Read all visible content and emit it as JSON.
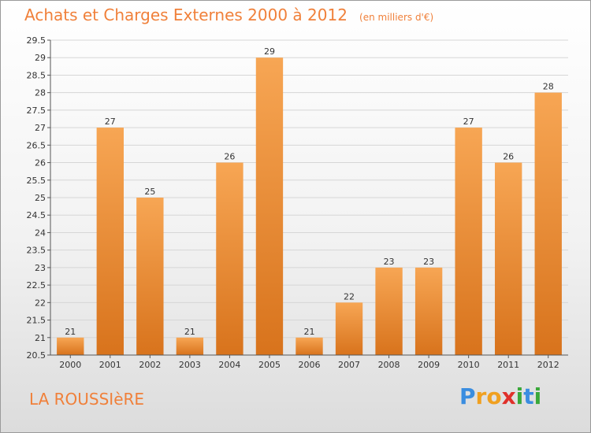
{
  "chart_data": {
    "type": "bar",
    "title": "Achats et Charges Externes 2000 à 2012",
    "subtitle": "(en milliers d'€)",
    "categories": [
      "2000",
      "2001",
      "2002",
      "2003",
      "2004",
      "2005",
      "2006",
      "2007",
      "2008",
      "2009",
      "2010",
      "2011",
      "2012"
    ],
    "values": [
      21,
      27,
      25,
      21,
      26,
      29,
      21,
      22,
      23,
      23,
      27,
      26,
      28
    ],
    "xlabel": "",
    "ylabel": "",
    "ylim": [
      20.5,
      29.5
    ],
    "yticks": [
      "20.5",
      "21",
      "21.5",
      "22",
      "22.5",
      "23",
      "23.5",
      "24",
      "24.5",
      "25",
      "25.5",
      "26",
      "26.5",
      "27",
      "27.5",
      "28",
      "28.5",
      "29",
      "29.5"
    ],
    "grid": true,
    "bar_color": "#f09a48",
    "bar_color_dark": "#d8731c"
  },
  "commune": "LA ROUSSIèRE",
  "brand": {
    "letters": [
      "P",
      "r",
      "o",
      "x",
      "i",
      "t",
      "i"
    ],
    "colors": [
      "#3a8de0",
      "#f0a020",
      "#f0a020",
      "#e0302a",
      "#3aa83a",
      "#3a8de0",
      "#3aa83a"
    ]
  }
}
